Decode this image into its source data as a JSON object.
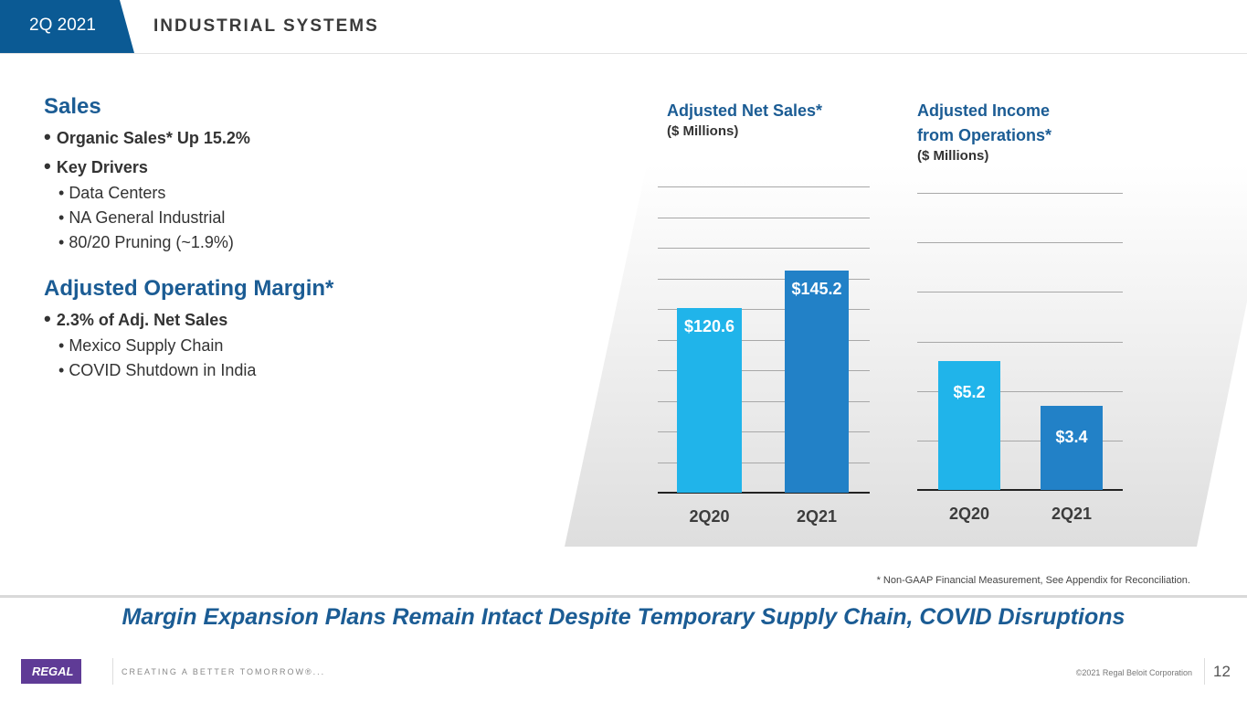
{
  "header": {
    "period": "2Q 2021",
    "title": "INDUSTRIAL SYSTEMS"
  },
  "left": {
    "sales_heading": "Sales",
    "sales_items": [
      {
        "text": "Organic Sales* Up 15.2%",
        "level": 1
      },
      {
        "text": "Key Drivers",
        "level": 1
      },
      {
        "text": "Data Centers",
        "level": 2
      },
      {
        "text": "NA General Industrial",
        "level": 2
      },
      {
        "text": "80/20 Pruning (~1.9%)",
        "level": 2
      }
    ],
    "margin_heading": "Adjusted Operating Margin*",
    "margin_items": [
      {
        "text": "2.3% of Adj. Net Sales",
        "level": 1
      },
      {
        "text": "Mexico Supply Chain",
        "level": 2
      },
      {
        "text": "COVID Shutdown in India",
        "level": 2
      }
    ]
  },
  "chart_data": [
    {
      "type": "bar",
      "title": "Adjusted Net Sales*",
      "subtitle": "($ Millions)",
      "categories": [
        "2Q20",
        "2Q21"
      ],
      "values": [
        120.6,
        145.2
      ],
      "labels": [
        "$120.6",
        "$145.2"
      ],
      "colors": [
        "#20b4ea",
        "#2281c7"
      ],
      "ylim": [
        0,
        200
      ],
      "grid_step": 20
    },
    {
      "type": "bar",
      "title": "Adjusted Income from Operations*",
      "title_lines": [
        "Adjusted Income",
        "from Operations*"
      ],
      "subtitle": "($ Millions)",
      "categories": [
        "2Q20",
        "2Q21"
      ],
      "values": [
        5.2,
        3.4
      ],
      "labels": [
        "$5.2",
        "$3.4"
      ],
      "colors": [
        "#20b4ea",
        "#2281c7"
      ],
      "ylim": [
        0,
        12
      ],
      "grid_step": 2
    }
  ],
  "footnote": "* Non-GAAP Financial Measurement, See Appendix for Reconciliation.",
  "headline": "Margin Expansion Plans Remain Intact Despite Temporary Supply Chain, COVID Disruptions",
  "footer": {
    "logo": "REGAL",
    "tagline": "CREATING A BETTER TOMORROW®...",
    "copyright": "©2021 Regal Beloit Corporation",
    "page": "12"
  }
}
